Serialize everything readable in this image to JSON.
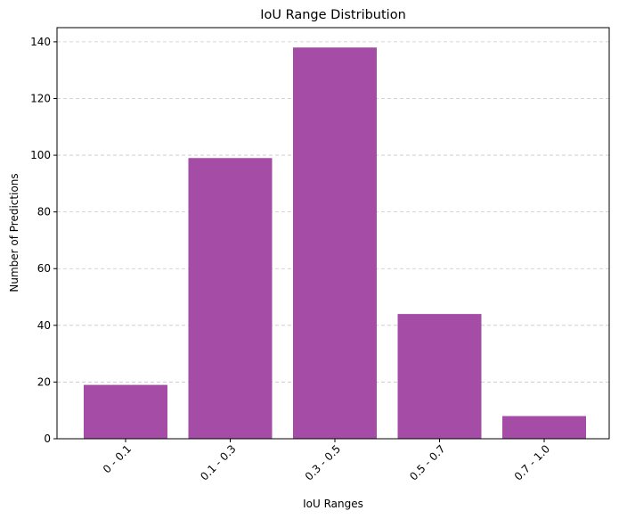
{
  "chart_data": {
    "type": "bar",
    "title": "IoU Range Distribution",
    "xlabel": "IoU Ranges",
    "ylabel": "Number of Predictions",
    "categories": [
      "0 - 0.1",
      "0.1 - 0.3",
      "0.3 - 0.5",
      "0.5 - 0.7",
      "0.7 - 1.0"
    ],
    "values": [
      19,
      99,
      138,
      44,
      8
    ],
    "ylim": [
      0,
      145
    ],
    "yticks": [
      0,
      20,
      40,
      60,
      80,
      100,
      120,
      140
    ],
    "grid": "y-dashed",
    "bar_color": "#a44ca6",
    "grid_color": "#c8c8c8",
    "xtick_rotation_deg": 45
  }
}
